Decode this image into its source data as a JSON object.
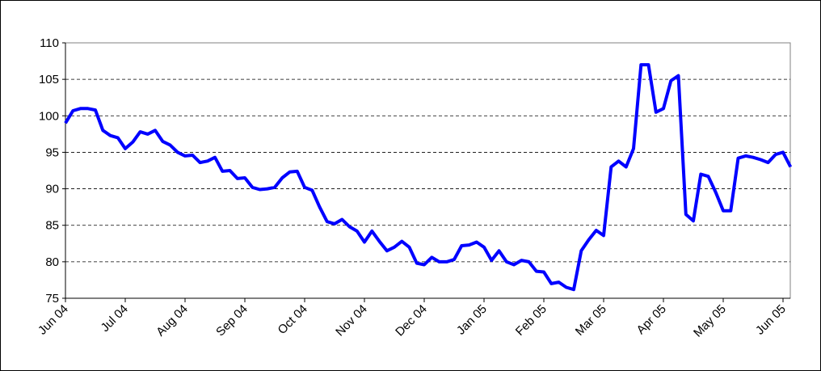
{
  "chart_data": {
    "type": "line",
    "color": "#0000ff",
    "grid": true,
    "categories": [
      "Jun 04",
      null,
      null,
      null,
      null,
      null,
      null,
      null,
      "Jul 04",
      null,
      null,
      null,
      null,
      null,
      null,
      null,
      "Aug 04",
      null,
      null,
      null,
      null,
      null,
      null,
      null,
      "Sep 04",
      null,
      null,
      null,
      null,
      null,
      null,
      null,
      "Oct 04",
      null,
      null,
      null,
      null,
      null,
      null,
      null,
      "Nov 04",
      null,
      null,
      null,
      null,
      null,
      null,
      null,
      "Dec 04",
      null,
      null,
      null,
      null,
      null,
      null,
      null,
      "Jan 05",
      null,
      null,
      null,
      null,
      null,
      null,
      null,
      "Feb 05",
      null,
      null,
      null,
      null,
      null,
      null,
      null,
      "Mar 05",
      null,
      null,
      null,
      null,
      null,
      null,
      null,
      "Apr 05",
      null,
      null,
      null,
      null,
      null,
      null,
      null,
      "May 05",
      null,
      null,
      null,
      null,
      null,
      null,
      null,
      "Jun 05",
      null
    ],
    "values": [
      99,
      100.7,
      101,
      101,
      100.8,
      98,
      97.3,
      97,
      95.5,
      96.4,
      97.8,
      97.5,
      98,
      96.5,
      96,
      95,
      94.5,
      94.6,
      93.6,
      93.8,
      94.3,
      92.4,
      92.5,
      91.4,
      91.5,
      90.2,
      89.9,
      90,
      90.2,
      91.5,
      92.3,
      92.4,
      90.2,
      89.8,
      87.5,
      85.5,
      85.2,
      85.8,
      84.8,
      84.2,
      82.7,
      84.2,
      82.8,
      81.5,
      82,
      82.8,
      82,
      79.8,
      79.6,
      80.6,
      80,
      80,
      80.3,
      82.2,
      82.3,
      82.7,
      82,
      80.2,
      81.5,
      80,
      79.6,
      80.2,
      80,
      78.7,
      78.6,
      77,
      77.2,
      76.5,
      76.2,
      81.5,
      83,
      84.3,
      83.6,
      93,
      93.8,
      93,
      95.5,
      107,
      107,
      100.5,
      101,
      104.8,
      105.5,
      86.5,
      85.6,
      92,
      91.7,
      89.5,
      87,
      87,
      94.2,
      94.5,
      94.3,
      94,
      93.6,
      94.7,
      95,
      93
    ],
    "ylim": [
      75,
      110
    ],
    "yticks": [
      75,
      80,
      85,
      90,
      95,
      100,
      105,
      110
    ]
  }
}
